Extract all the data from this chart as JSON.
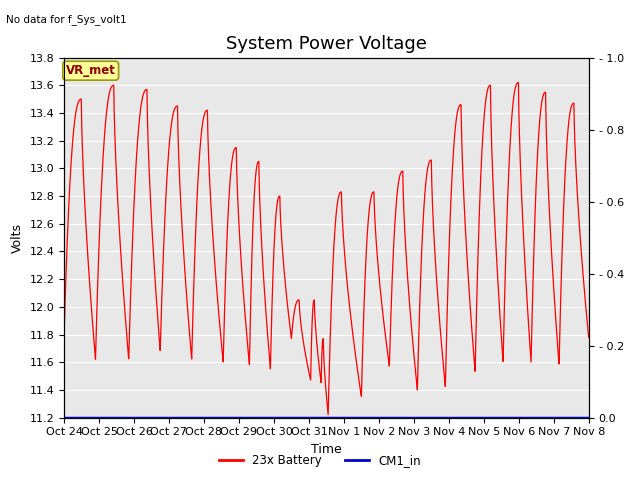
{
  "title": "System Power Voltage",
  "top_left_text": "No data for f_Sys_volt1",
  "ylabel_left": "Volts",
  "xlabel": "Time",
  "ylim_left": [
    11.2,
    13.8
  ],
  "ylim_right": [
    0.0,
    1.0
  ],
  "yticks_left": [
    11.2,
    11.4,
    11.6,
    11.8,
    12.0,
    12.2,
    12.4,
    12.6,
    12.8,
    13.0,
    13.2,
    13.4,
    13.6,
    13.8
  ],
  "yticks_right_vals": [
    0.0,
    0.2,
    0.4,
    0.6,
    0.8,
    1.0
  ],
  "yticks_right_labels": [
    "0.0",
    "0.2",
    "0.4",
    "0.6",
    "0.8",
    "1.0"
  ],
  "xtick_labels": [
    "Oct 24",
    "Oct 25",
    "Oct 26",
    "Oct 27",
    "Oct 28",
    "Oct 29",
    "Oct 30",
    "Oct 31",
    "Nov 1",
    "Nov 2",
    "Nov 3",
    "Nov 4",
    "Nov 5",
    "Nov 6",
    "Nov 7",
    "Nov 8"
  ],
  "line_color_battery": "#FF0000",
  "line_color_cm1": "#0000CC",
  "outer_bg": "#FFFFFF",
  "plot_bg_color": "#E8E8E8",
  "annotation_text": "VR_met",
  "annotation_bg": "#FFFF99",
  "annotation_border": "#999900",
  "legend_labels": [
    "23x Battery",
    "CM1_in"
  ],
  "title_fontsize": 13,
  "label_fontsize": 9,
  "tick_fontsize": 8,
  "grid_color": "#FFFFFF"
}
